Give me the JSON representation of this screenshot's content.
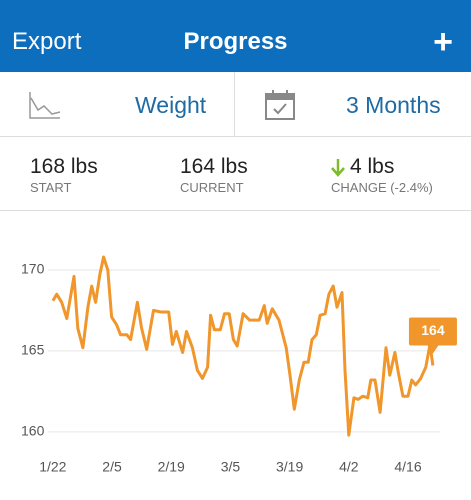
{
  "header": {
    "left": "Export",
    "title": "Progress",
    "right": "+"
  },
  "selectors": {
    "metric": "Weight",
    "range": "3 Months"
  },
  "stats": [
    {
      "value": "168 lbs",
      "label": "START"
    },
    {
      "value": "164 lbs",
      "label": "CURRENT"
    },
    {
      "value": "4 lbs",
      "label": "CHANGE (-2.4%)"
    }
  ],
  "chart_data": {
    "type": "line",
    "series": [
      {
        "color": "#f0962a",
        "x": [
          0,
          0.9,
          2.1,
          3.3,
          5,
          5.9,
          7.1,
          8.3,
          9.2,
          10.1,
          11.1,
          12,
          13,
          13.9,
          15.1,
          16,
          17.5,
          18.4,
          20,
          21,
          22.2,
          23.8,
          25.5,
          27.4,
          28.3,
          29.2,
          30.7,
          31.6,
          33,
          34.2,
          35.4,
          36.6,
          37.3,
          38.2,
          39.6,
          40.6,
          41.7,
          42.7,
          43.6,
          45,
          46.5,
          48.8,
          50,
          50.7,
          51.9,
          53.5,
          55.2,
          56.1,
          57.1,
          58.3,
          59.4,
          60.4,
          61.3,
          62.3,
          63.2,
          64.4,
          65.3,
          66.3,
          67.2,
          68.4,
          69.1,
          70,
          71.2,
          72.2,
          73.3,
          74.5,
          75.2,
          76.2,
          77.4,
          78.8,
          79.7,
          80.9,
          81.6,
          82.8,
          84,
          84.9,
          85.8,
          87,
          88.2,
          89.2,
          89.9
        ],
        "values": [
          168.1,
          168.5,
          168,
          167,
          169.6,
          166.4,
          165.2,
          167.7,
          169,
          168,
          169.7,
          170.8,
          170,
          167.1,
          166.6,
          166,
          166,
          165.7,
          168,
          166.4,
          165.1,
          167.5,
          167.4,
          167.4,
          165.4,
          166.2,
          164.9,
          166.2,
          165.2,
          163.8,
          163.3,
          164,
          167.2,
          166.3,
          166.3,
          167.3,
          167.3,
          165.7,
          165.3,
          167.3,
          166.9,
          166.9,
          167.8,
          166.7,
          167.6,
          166.9,
          165.2,
          163.5,
          161.4,
          163.2,
          164.3,
          164.3,
          165.7,
          166,
          167.2,
          167.3,
          168.5,
          169,
          167.7,
          168.6,
          163.8,
          159.8,
          162.1,
          162,
          162.2,
          162.1,
          163.2,
          163.2,
          161.2,
          165.2,
          163.5,
          164.9,
          163.8,
          162.2,
          162.2,
          163.2,
          162.9,
          163.3,
          164,
          165.4,
          164.1
        ]
      }
    ],
    "callout": 164,
    "xlim": [
      -12.5,
      98.9
    ],
    "xticks": [
      {
        "value": 0,
        "label": "1/22"
      },
      {
        "value": 14,
        "label": "2/5"
      },
      {
        "value": 28,
        "label": "2/19"
      },
      {
        "value": 42,
        "label": "3/5"
      },
      {
        "value": 56,
        "label": "3/19"
      },
      {
        "value": 70,
        "label": "4/2"
      },
      {
        "value": 84,
        "label": "4/16"
      }
    ],
    "ylim": [
      159,
      172.5
    ],
    "yticks": [
      160,
      165,
      170
    ],
    "grid": true
  }
}
